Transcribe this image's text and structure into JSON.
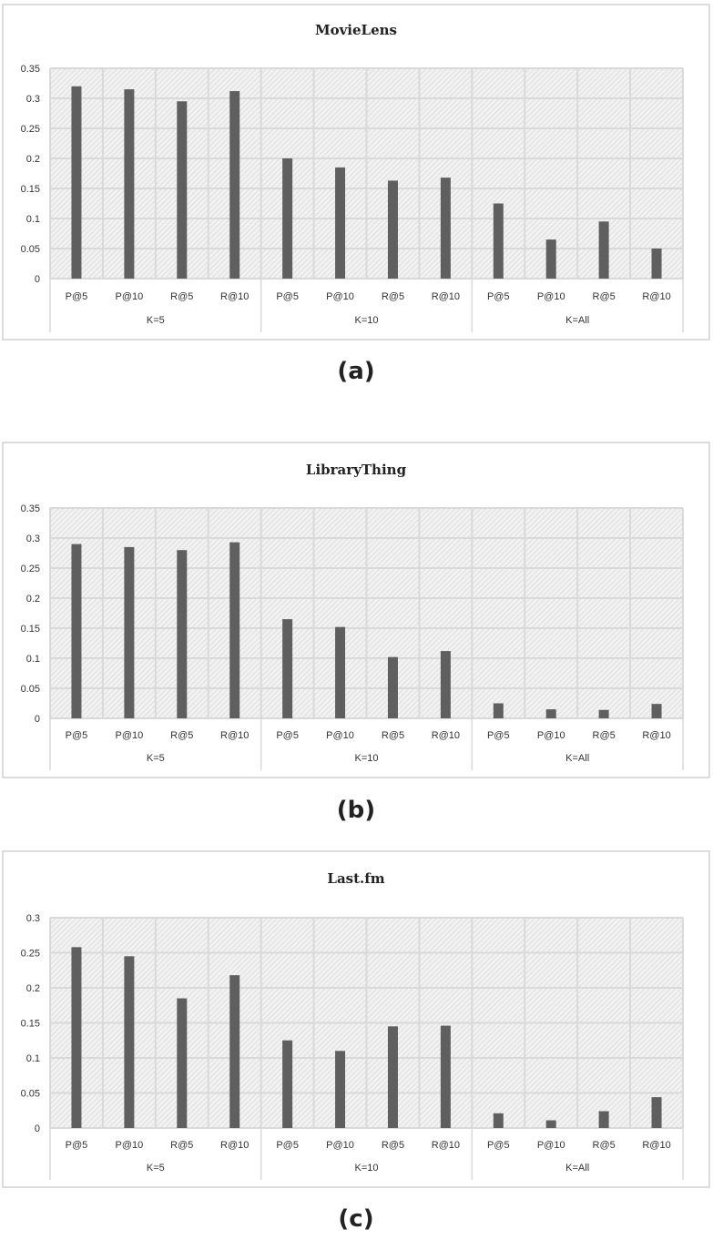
{
  "chart_data": [
    {
      "type": "bar",
      "title": "MovieLens",
      "caption": "(a)",
      "groups": [
        "K=5",
        "K=10",
        "K=All"
      ],
      "categories": [
        "P@5",
        "P@10",
        "R@5",
        "R@10",
        "P@5",
        "P@10",
        "R@5",
        "R@10",
        "P@5",
        "P@10",
        "R@5",
        "R@10"
      ],
      "values": [
        0.32,
        0.315,
        0.295,
        0.312,
        0.2,
        0.185,
        0.163,
        0.168,
        0.125,
        0.065,
        0.095,
        0.05
      ],
      "yticks": [
        "0",
        "0.05",
        "0.1",
        "0.15",
        "0.2",
        "0.25",
        "0.3",
        "0.35"
      ],
      "ylim": [
        0,
        0.35
      ],
      "bar_color": "#5f5f5f"
    },
    {
      "type": "bar",
      "title": "LibraryThing",
      "caption": "(b)",
      "groups": [
        "K=5",
        "K=10",
        "K=All"
      ],
      "categories": [
        "P@5",
        "P@10",
        "R@5",
        "R@10",
        "P@5",
        "P@10",
        "R@5",
        "R@10",
        "P@5",
        "P@10",
        "R@5",
        "R@10"
      ],
      "values": [
        0.29,
        0.285,
        0.28,
        0.293,
        0.165,
        0.152,
        0.102,
        0.112,
        0.025,
        0.015,
        0.014,
        0.024
      ],
      "yticks": [
        "0",
        "0.05",
        "0.1",
        "0.15",
        "0.2",
        "0.25",
        "0.3",
        "0.35"
      ],
      "ylim": [
        0,
        0.35
      ],
      "bar_color": "#5f5f5f"
    },
    {
      "type": "bar",
      "title": "Last.fm",
      "caption": "(c)",
      "groups": [
        "K=5",
        "K=10",
        "K=All"
      ],
      "categories": [
        "P@5",
        "P@10",
        "R@5",
        "R@10",
        "P@5",
        "P@10",
        "R@5",
        "R@10",
        "P@5",
        "P@10",
        "R@5",
        "R@10"
      ],
      "values": [
        0.258,
        0.245,
        0.185,
        0.218,
        0.125,
        0.11,
        0.145,
        0.146,
        0.021,
        0.011,
        0.024,
        0.044
      ],
      "yticks": [
        "0",
        "0.05",
        "0.1",
        "0.15",
        "0.2",
        "0.25",
        "0.3"
      ],
      "ylim": [
        0,
        0.3
      ],
      "bar_color": "#5f5f5f"
    }
  ]
}
